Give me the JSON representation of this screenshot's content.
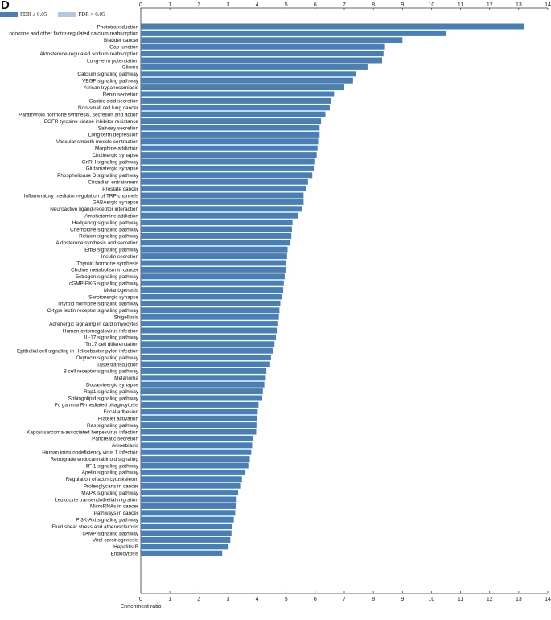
{
  "panel_label": "D",
  "colors": {
    "significant": "#4a7fb5",
    "not_significant": "#b3c9e3",
    "axis": "#333333"
  },
  "chart_data": {
    "type": "bar",
    "orientation": "horizontal",
    "xlabel": "Enrichment ratio",
    "xlim": [
      0,
      14
    ],
    "xticks": [
      0,
      1,
      2,
      3,
      4,
      5,
      6,
      7,
      8,
      9,
      10,
      11,
      12,
      13,
      14
    ],
    "xticks_top_and_bottom": true,
    "grid": false,
    "legend": {
      "placement": "top-left",
      "entries": [
        {
          "label": "FDR ≤ 0.05",
          "color": "#4a7fb5"
        },
        {
          "label": "FDR > 0.05",
          "color": "#b3c9e3"
        }
      ]
    },
    "categories": [
      "Phototransduction",
      "ndocrine and other factor-regulated calcium reabsorption",
      "Bladder cancer",
      "Gap junction",
      "Aldosterone-regulated sodium reabsorption",
      "Long-term potentiation",
      "Glioma",
      "Calcium signaling pathway",
      "VEGF signaling pathway",
      "African trypanosomiasis",
      "Renin secretion",
      "Gastric acid secretion",
      "Non-small cell lung cancer",
      "Parathyroid hormone synthesis, secretion and action",
      "EGFR tyrosine kinase inhibitor resistance",
      "Salivary secretion",
      "Long-term depression",
      "Vascular smooth muscle contraction",
      "Morphine addiction",
      "Cholinergic synapse",
      "GnRH signaling pathway",
      "Glutamatergic synapse",
      "Phospholipase D signaling pathway",
      "Circadian entrainment",
      "Prostate cancer",
      "Inflammatory mediator regulation of TRP channels",
      "GABAergic synapse",
      "Neuroactive ligand-receptor interaction",
      "Amphetamine addiction",
      "Hedgehog signaling pathway",
      "Chemokine signaling pathway",
      "Relaxin signaling pathway",
      "Aldosterone synthesis and secretion",
      "ErbB signaling pathway",
      "Insulin secretion",
      "Thyroid hormone synthesis",
      "Choline metabolism in cancer",
      "Estrogen signaling pathway",
      "cGMP-PKG signaling pathway",
      "Melanogenesis",
      "Serotonergic synapse",
      "Thyroid hormone signaling pathway",
      "C-type lectin receptor signaling pathway",
      "Shigellosis",
      "Adrenergic signaling in cardiomyocytes",
      "Human cytomegalovirus infection",
      "IL-17 signaling pathway",
      "Th17 cell differentiation",
      "Epithelial cell signaling in Helicobacter pylori infection",
      "Oxytocin signaling pathway",
      "Taste transduction",
      "B cell receptor signaling pathway",
      "Melanoma",
      "Dopaminergic synapse",
      "Rap1 signaling pathway",
      "Sphingolipid signaling pathway",
      "Fc gamma R-mediated phagocytosis",
      "Focal adhesion",
      "Platelet activation",
      "Ras signaling pathway",
      "Kaposi sarcoma-associated herpesvirus infection",
      "Pancreatic secretion",
      "Amoebiasis",
      "Human immunodeficiency virus 1 infection",
      "Retrograde endocannabinoid signaling",
      "HIF-1 signaling pathway",
      "Apelin signaling pathway",
      "Regulation of actin cytoskeleton",
      "Proteoglycans in cancer",
      "MAPK signaling pathway",
      "Leukocyte transendothelial migration",
      "MicroRNAs in cancer",
      "Pathways in cancer",
      "PI3K-Akt signaling pathway",
      "Fluid shear stress and atherosclerosis",
      "cAMP signaling pathway",
      "Viral carcinogenesis",
      "Hepatitis B",
      "Endocytosis"
    ],
    "values": [
      13.2,
      10.5,
      9.0,
      8.4,
      8.35,
      8.3,
      7.8,
      7.4,
      7.3,
      7.0,
      6.65,
      6.55,
      6.5,
      6.35,
      6.2,
      6.15,
      6.15,
      6.1,
      6.08,
      6.05,
      5.97,
      5.95,
      5.9,
      5.75,
      5.7,
      5.6,
      5.6,
      5.55,
      5.42,
      5.22,
      5.2,
      5.18,
      5.12,
      5.05,
      5.03,
      5.0,
      4.98,
      4.95,
      4.92,
      4.9,
      4.85,
      4.8,
      4.77,
      4.75,
      4.7,
      4.68,
      4.65,
      4.6,
      4.55,
      4.48,
      4.45,
      4.32,
      4.3,
      4.25,
      4.2,
      4.18,
      4.05,
      4.02,
      4.0,
      3.98,
      3.97,
      3.85,
      3.83,
      3.8,
      3.75,
      3.7,
      3.6,
      3.48,
      3.42,
      3.35,
      3.3,
      3.28,
      3.25,
      3.2,
      3.15,
      3.12,
      3.08,
      3.02,
      2.8
    ],
    "significance": "all FDR ≤ 0.05"
  }
}
